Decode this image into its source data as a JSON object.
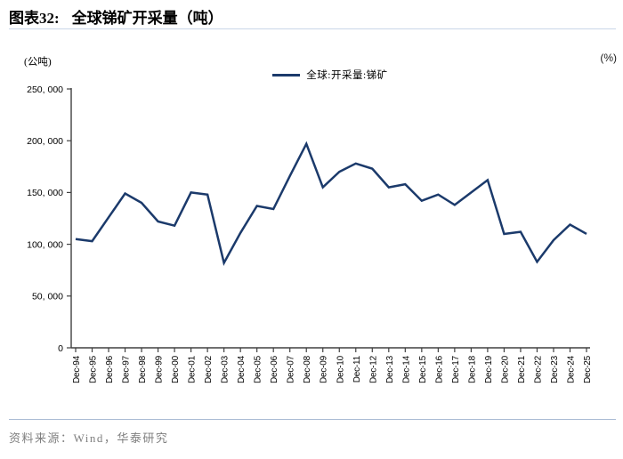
{
  "header": {
    "prefix": "图表32:",
    "title": "全球锑矿开采量（吨）"
  },
  "chart": {
    "left_unit": "(公吨)",
    "right_unit": "(%)",
    "legend_label": "全球:开采量:锑矿",
    "line_color": "#1B3A6B",
    "axis_color": "#404040",
    "rule_color": "#8FA5C6"
  },
  "chart_data": {
    "type": "line",
    "title": "全球锑矿开采量（吨）",
    "categories": [
      "Dec-94",
      "Dec-95",
      "Dec-96",
      "Dec-97",
      "Dec-98",
      "Dec-99",
      "Dec-00",
      "Dec-01",
      "Dec-02",
      "Dec-03",
      "Dec-04",
      "Dec-05",
      "Dec-06",
      "Dec-07",
      "Dec-08",
      "Dec-09",
      "Dec-10",
      "Dec-11",
      "Dec-12",
      "Dec-13",
      "Dec-14",
      "Dec-15",
      "Dec-16",
      "Dec-17",
      "Dec-18",
      "Dec-19",
      "Dec-20",
      "Dec-21",
      "Dec-22",
      "Dec-23",
      "Dec-24",
      "Dec-25"
    ],
    "series": [
      {
        "name": "全球:开采量:锑矿",
        "values": [
          105000,
          103000,
          126000,
          149000,
          140000,
          122000,
          118000,
          150000,
          148000,
          82000,
          111000,
          137000,
          134000,
          166000,
          197000,
          155000,
          170000,
          178000,
          173000,
          155000,
          158000,
          142000,
          148000,
          138000,
          150000,
          162000,
          110000,
          112000,
          83000,
          104000,
          119000,
          110000
        ]
      }
    ],
    "xlabel": "",
    "ylabel": "(公吨)",
    "ylim": [
      0,
      250000
    ],
    "y_ticks": [
      0,
      50000,
      100000,
      150000,
      200000,
      250000
    ],
    "y_tick_labels": [
      "0",
      "50, 000",
      "100, 000",
      "150, 000",
      "200, 000",
      "250, 000"
    ],
    "grid": false,
    "legend_position": "top-center"
  },
  "footer": {
    "source": "资料来源：Wind，华泰研究"
  }
}
